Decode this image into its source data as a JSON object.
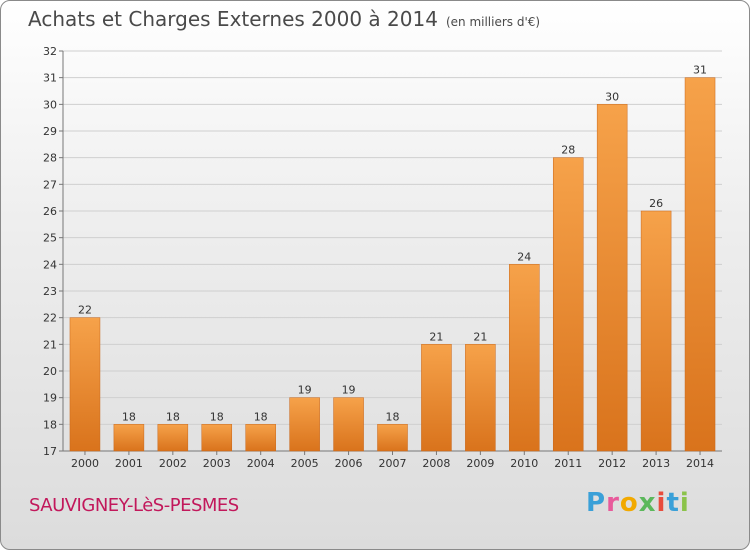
{
  "header": {
    "title": "Achats et Charges Externes 2000 à 2014",
    "unit": "(en milliers d'€)"
  },
  "footer": {
    "commune": "SAUVIGNEY-LèS-PESMES",
    "logo": "Proxiti",
    "logo_colors": [
      "#3aa0d8",
      "#e85a9b",
      "#f2a900",
      "#5cb85c",
      "#e84c3d",
      "#3aa0d8",
      "#8bc34a"
    ]
  },
  "colors": {
    "bar_light": "#f6a24a",
    "bar_dark": "#d9731c",
    "grid": "#cfcfcf",
    "axis_text": "#333333"
  },
  "chart_data": {
    "type": "bar",
    "categories": [
      "2000",
      "2001",
      "2002",
      "2003",
      "2004",
      "2005",
      "2006",
      "2007",
      "2008",
      "2009",
      "2010",
      "2011",
      "2012",
      "2013",
      "2014"
    ],
    "values": [
      22,
      18,
      18,
      18,
      18,
      19,
      19,
      18,
      21,
      21,
      24,
      28,
      30,
      26,
      31
    ],
    "title": "Achats et Charges Externes 2000 à 2014",
    "ylim": [
      17,
      32
    ],
    "yticks": [
      17,
      18,
      19,
      20,
      21,
      22,
      23,
      24,
      25,
      26,
      27,
      28,
      29,
      30,
      31,
      32
    ],
    "grid": true,
    "data_labels": true
  }
}
